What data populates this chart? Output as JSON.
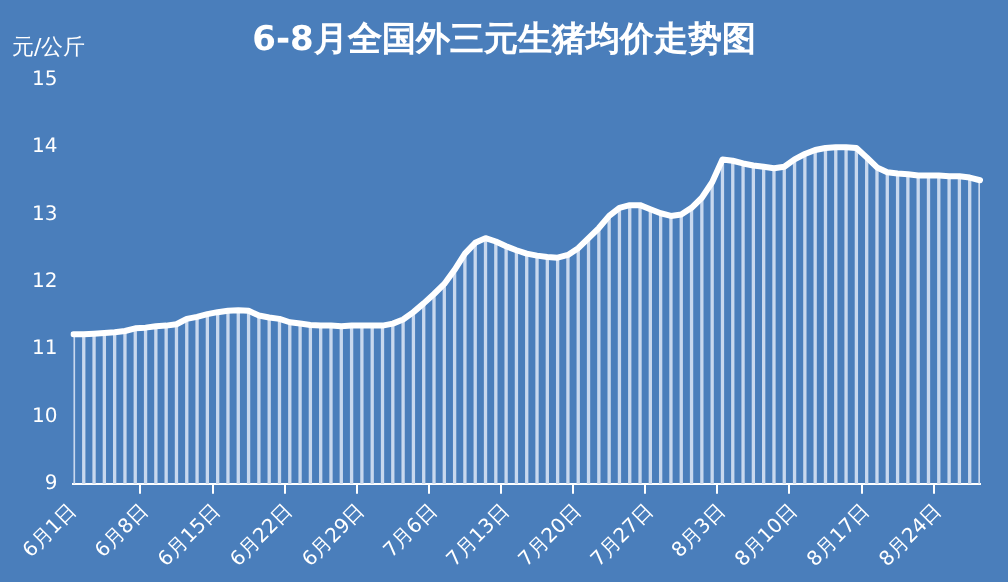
{
  "chart_data": {
    "type": "line",
    "title": "6-8月全国外三元生猪均价走势图",
    "ylabel": "元/公斤",
    "categories": [
      "6月1日",
      null,
      null,
      null,
      null,
      null,
      null,
      "6月8日",
      null,
      null,
      null,
      null,
      null,
      null,
      "6月15日",
      null,
      null,
      null,
      null,
      null,
      null,
      "6月22日",
      null,
      null,
      null,
      null,
      null,
      null,
      "6月29日",
      null,
      null,
      null,
      null,
      null,
      null,
      "7月6日",
      null,
      null,
      null,
      null,
      null,
      null,
      "7月13日",
      null,
      null,
      null,
      null,
      null,
      null,
      "7月20日",
      null,
      null,
      null,
      null,
      null,
      null,
      "7月27日",
      null,
      null,
      null,
      null,
      null,
      null,
      "8月3日",
      null,
      null,
      null,
      null,
      null,
      null,
      "8月10日",
      null,
      null,
      null,
      null,
      null,
      null,
      "8月17日",
      null,
      null,
      null,
      null,
      null,
      null,
      "8月24日",
      null,
      null,
      null,
      null
    ],
    "series": [
      {
        "type": "bar",
        "color": "#c8d8ee",
        "values": [
          11.22,
          11.22,
          11.23,
          11.24,
          11.25,
          11.27,
          11.31,
          11.32,
          11.34,
          11.35,
          11.37,
          11.45,
          11.48,
          11.52,
          11.55,
          11.57,
          11.58,
          11.57,
          11.5,
          11.47,
          11.45,
          11.4,
          11.38,
          11.36,
          11.35,
          11.35,
          11.34,
          11.35,
          11.35,
          11.35,
          11.35,
          11.38,
          11.44,
          11.55,
          11.68,
          11.82,
          11.97,
          12.18,
          12.42,
          12.58,
          12.65,
          12.6,
          12.53,
          12.47,
          12.42,
          12.39,
          12.37,
          12.36,
          12.4,
          12.5,
          12.65,
          12.8,
          12.98,
          13.1,
          13.14,
          13.14,
          13.08,
          13.02,
          12.98,
          13.0,
          13.1,
          13.25,
          13.48,
          13.82,
          13.8,
          13.76,
          13.73,
          13.71,
          13.69,
          13.71,
          13.82,
          13.9,
          13.96,
          13.99,
          14.0,
          14.0,
          13.99,
          13.85,
          13.7,
          13.63,
          13.61,
          13.6,
          13.58,
          13.58,
          13.58,
          13.57,
          13.57,
          13.55,
          13.51
        ]
      },
      {
        "color": "#ffffff",
        "values": [
          11.22,
          11.22,
          11.23,
          11.24,
          11.25,
          11.27,
          11.31,
          11.32,
          11.34,
          11.35,
          11.37,
          11.45,
          11.48,
          11.52,
          11.55,
          11.57,
          11.58,
          11.57,
          11.5,
          11.47,
          11.45,
          11.4,
          11.38,
          11.36,
          11.35,
          11.35,
          11.34,
          11.35,
          11.35,
          11.35,
          11.35,
          11.38,
          11.44,
          11.55,
          11.68,
          11.82,
          11.97,
          12.18,
          12.42,
          12.58,
          12.65,
          12.6,
          12.53,
          12.47,
          12.42,
          12.39,
          12.37,
          12.36,
          12.4,
          12.5,
          12.65,
          12.8,
          12.98,
          13.1,
          13.14,
          13.14,
          13.08,
          13.02,
          12.98,
          13.0,
          13.1,
          13.25,
          13.48,
          13.82,
          13.8,
          13.76,
          13.73,
          13.71,
          13.69,
          13.71,
          13.82,
          13.9,
          13.96,
          13.99,
          14.0,
          14.0,
          13.99,
          13.85,
          13.7,
          13.63,
          13.61,
          13.6,
          13.58,
          13.58,
          13.58,
          13.57,
          13.57,
          13.55,
          13.51
        ]
      }
    ],
    "ylim": [
      9,
      15
    ],
    "yticks": [
      9,
      10,
      11,
      12,
      13,
      14,
      15
    ],
    "grid": false,
    "legend": false,
    "marker": "none"
  }
}
